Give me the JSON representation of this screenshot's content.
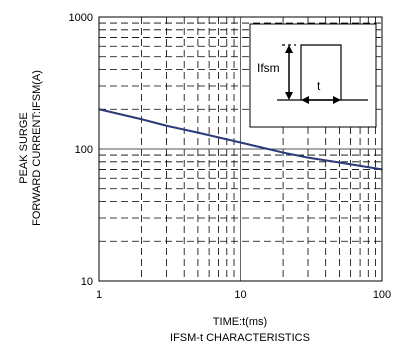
{
  "chart_data": {
    "type": "line",
    "title": "IFSM-t CHARACTERISTICS",
    "xlabel": "TIME:t(ms)",
    "ylabel_line1": "PEAK SURGE",
    "ylabel_line2": "FORWARD CURRENT:IFSM(A)",
    "x_scale": "log",
    "y_scale": "log",
    "xlim": [
      1,
      100
    ],
    "ylim": [
      10,
      1000
    ],
    "x_ticks": [
      1,
      10,
      100
    ],
    "x_tick_labels": [
      "1",
      "10",
      "100"
    ],
    "y_ticks": [
      10,
      100,
      1000
    ],
    "y_tick_labels": [
      "10",
      "100",
      "1000"
    ],
    "grid": "major solid, minor dashed",
    "series": [
      {
        "color": "#2b3a7a",
        "x": [
          1,
          2,
          3,
          5,
          10,
          20,
          30,
          50,
          100
        ],
        "y": [
          200,
          168,
          150,
          133,
          112,
          94,
          86,
          79,
          70
        ]
      }
    ],
    "inset": {
      "label_amplitude": "Ifsm",
      "label_width": "t"
    }
  }
}
